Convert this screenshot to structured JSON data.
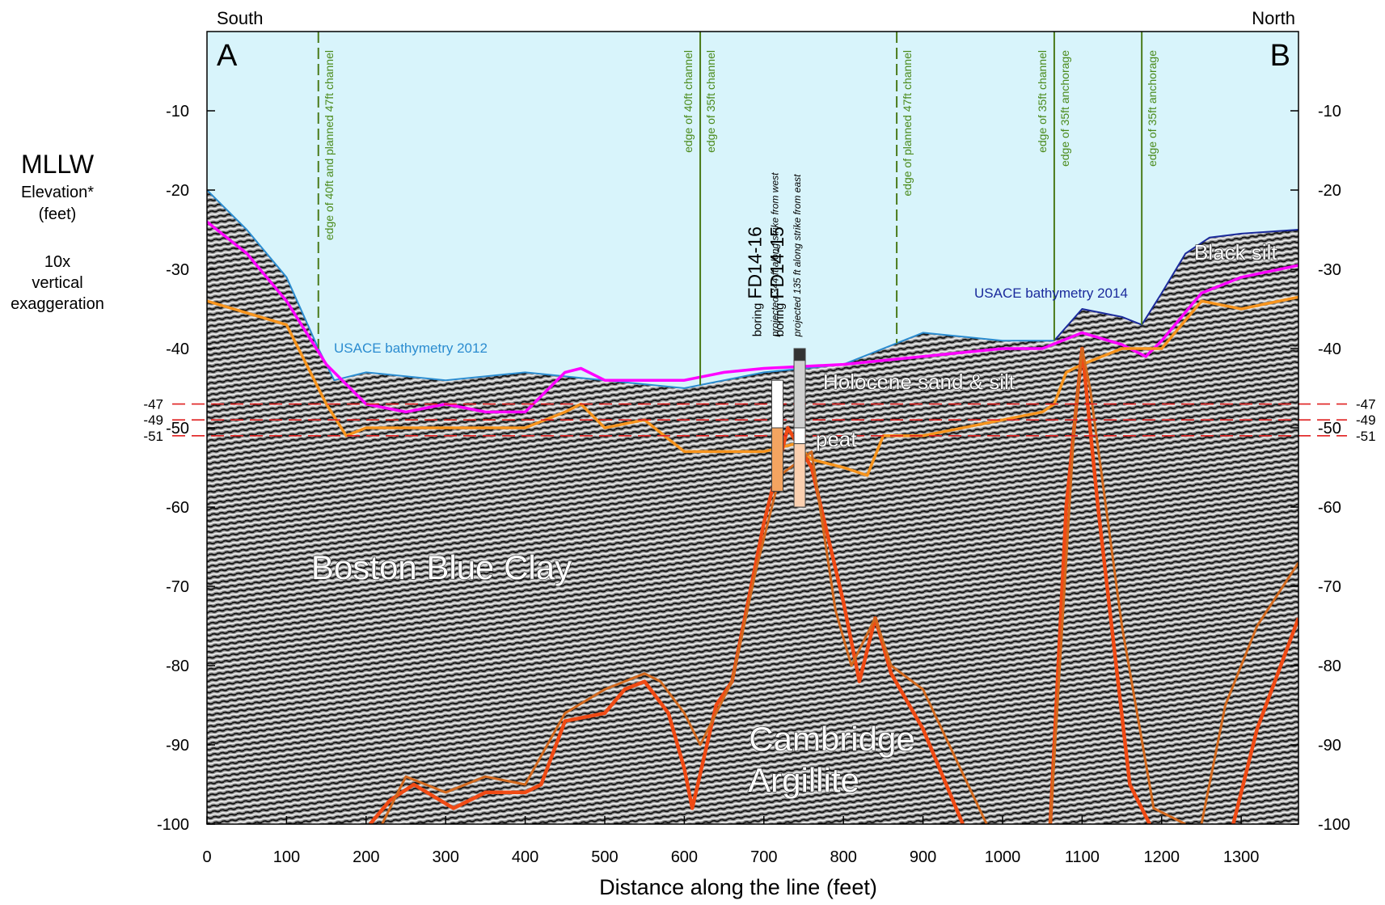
{
  "chart_data": {
    "type": "profile",
    "direction_labels": [
      "South",
      "North"
    ],
    "section_labels": [
      "A",
      "B"
    ],
    "y_label": [
      "MLLW",
      "Elevation*",
      "(feet)"
    ],
    "note": [
      "10x",
      "vertical",
      "exaggeration"
    ],
    "x_label": "Distance along the line (feet)",
    "xlim": [
      0,
      1372
    ],
    "ylim": [
      -100,
      0
    ],
    "xticks": [
      0,
      100,
      200,
      300,
      400,
      500,
      600,
      700,
      800,
      900,
      1000,
      1100,
      1200,
      1300
    ],
    "yticks": [
      -100,
      -90,
      -80,
      -70,
      -60,
      -50,
      -40,
      -30,
      -20,
      -10
    ],
    "y2lim": [
      -100,
      0
    ],
    "y2ticks": [
      -100,
      -90,
      -80,
      -70,
      -60,
      -50,
      -40,
      -30,
      -20,
      -10
    ],
    "reference_lines": {
      "values": [
        -47,
        -49,
        -51
      ],
      "color": "#e02020"
    },
    "series": [
      {
        "name": "USACE bathymetry 2012",
        "color": "#2b8cd0",
        "x": [
          0,
          50,
          100,
          140,
          160,
          200,
          300,
          400,
          500,
          600,
          700,
          800,
          900,
          1000,
          1065
        ],
        "values": [
          -20,
          -25,
          -31,
          -40,
          -44,
          -43,
          -44,
          -43,
          -44,
          -45,
          -43,
          -42,
          -38,
          -39,
          -39
        ]
      },
      {
        "name": "USACE bathymetry 2014",
        "color": "#1a2a9c",
        "x": [
          1065,
          1100,
          1150,
          1175,
          1200,
          1230,
          1260,
          1300,
          1372
        ],
        "values": [
          -39,
          -35,
          -36,
          -37,
          -33,
          -28,
          -26,
          -25.5,
          -25
        ]
      },
      {
        "color": "#ff00ff",
        "x": [
          0,
          50,
          100,
          150,
          200,
          250,
          300,
          350,
          400,
          450,
          470,
          500,
          550,
          600,
          650,
          700,
          800,
          900,
          1000,
          1050,
          1100,
          1150,
          1180,
          1200,
          1250,
          1300,
          1372
        ],
        "values": [
          -24,
          -28,
          -34,
          -42,
          -47,
          -48,
          -47,
          -48,
          -48,
          -43,
          -42.5,
          -44,
          -44,
          -44,
          -43,
          -42.5,
          -42,
          -41,
          -40,
          -40,
          -38,
          -39.5,
          -41,
          -39,
          -33,
          -31,
          -29.5
        ]
      },
      {
        "color": "#f7941d",
        "x": [
          0,
          100,
          150,
          175,
          200,
          300,
          400,
          450,
          470,
          500,
          550,
          600,
          650,
          700,
          740,
          760,
          800,
          830,
          850,
          900,
          1000,
          1050,
          1065,
          1080,
          1100,
          1150,
          1200,
          1250,
          1300,
          1372
        ],
        "values": [
          -34,
          -37,
          -47,
          -51,
          -50,
          -50,
          -50,
          -48,
          -47,
          -50,
          -49,
          -53,
          -53,
          -53,
          -52,
          -54,
          -55,
          -56,
          -51,
          -51,
          -49,
          -48,
          -47,
          -43,
          -42,
          -40,
          -40,
          -34,
          -35,
          -33.5
        ]
      },
      {
        "color": "#f04a14",
        "x": [
          205,
          230,
          260,
          310,
          350,
          400,
          420,
          450,
          500,
          525,
          550,
          580,
          600,
          610,
          640,
          660,
          700,
          730,
          760,
          800,
          820,
          840,
          860,
          900,
          950,
          960,
          1060,
          1080,
          1100,
          1120,
          1160,
          1185,
          1200,
          1290,
          1320,
          1372
        ],
        "values": [
          -100,
          -97,
          -95,
          -98,
          -96,
          -96,
          -95,
          -87,
          -86,
          -83,
          -82,
          -86,
          -93,
          -98,
          -85,
          -82,
          -62,
          -50,
          -55,
          -72,
          -82,
          -74,
          -81,
          -88,
          -100,
          null,
          -100,
          -60,
          -40,
          -60,
          -95,
          -100,
          null,
          -100,
          -88,
          -74
        ]
      },
      {
        "color": "#d2691e",
        "x": [
          220,
          250,
          300,
          350,
          400,
          450,
          500,
          550,
          570,
          600,
          620,
          660,
          690,
          720,
          760,
          790,
          810,
          840,
          860,
          900,
          980,
          985,
          1060,
          1090,
          1100,
          1110,
          1150,
          1190,
          1230,
          1235,
          1250,
          1280,
          1320,
          1372
        ],
        "values": [
          -100,
          -94,
          -96,
          -94,
          -95,
          -86,
          -83,
          -81,
          -82,
          -86,
          -90,
          -82,
          -68,
          -56,
          -53,
          -73,
          -80,
          -74,
          -80,
          -83,
          -100,
          null,
          -100,
          -50,
          -40,
          -45,
          -75,
          -98,
          -100,
          null,
          -100,
          -85,
          -75,
          -67
        ]
      }
    ],
    "channel_edges": [
      {
        "x": 140,
        "labels": [
          "edge of 40ft and planned 47ft channel"
        ],
        "dashed": true
      },
      {
        "x": 620,
        "labels": [
          "edge of 40ft channel",
          "edge of 35ft channel"
        ],
        "dashed": false
      },
      {
        "x": 867,
        "labels": [
          "edge of planned 47ft channel"
        ],
        "dashed": true
      },
      {
        "x": 1065,
        "labels": [
          "edge of 35ft channel",
          "edge of 35ft anchorage"
        ],
        "dashed": false
      },
      {
        "x": 1175,
        "labels": [
          "edge of 35ft anchorage"
        ],
        "dashed": false
      }
    ],
    "borings": [
      {
        "x": 717,
        "prefix": "boring",
        "id": "FD14-16",
        "note": "projected 344 ft along strike from west",
        "intervals": [
          {
            "top": -44,
            "bottom": -50,
            "color": "#ffffff"
          },
          {
            "top": -50,
            "bottom": -58,
            "color": "#f4a460"
          }
        ]
      },
      {
        "x": 745,
        "prefix": "boring",
        "id": "FD14-15",
        "note": "projected 135 ft along strike from east",
        "intervals": [
          {
            "top": -40,
            "bottom": -41.5,
            "color": "#333333"
          },
          {
            "top": -41.5,
            "bottom": -50,
            "color": "#d0d0d0"
          },
          {
            "top": -50,
            "bottom": -52,
            "color": "#ffffff"
          },
          {
            "top": -52,
            "bottom": -60,
            "color": "#fbd0b0"
          }
        ]
      }
    ],
    "annotations": [
      "Boston Blue Clay",
      "Cambridge",
      "Argillite",
      "Holocene sand & silt",
      "peat",
      "Black silt"
    ]
  }
}
